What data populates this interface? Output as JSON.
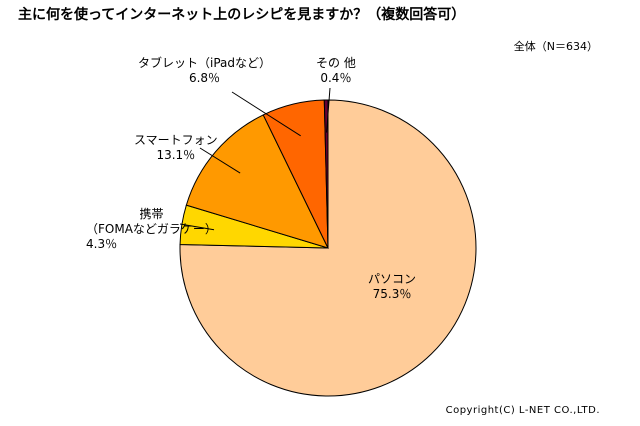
{
  "title": "主に何を使ってインターネット上のレシピを見ますか？（複数回答可）",
  "sample_note": "全体（N＝634）",
  "copyright": "Copyright(C) L-NET CO.,LTD.",
  "chart_data": {
    "type": "pie",
    "title": "主に何を使ってインターネット上のレシピを見ますか？（複数回答可）",
    "slices": [
      {
        "label": "パソコン",
        "percent_label": "75.3％",
        "value": 75.3,
        "color": "#FFCC99"
      },
      {
        "label": "携帯\n（FOMAなどガラケー）",
        "percent_label": "4.3％",
        "value": 4.3,
        "color": "#FFD700"
      },
      {
        "label": "スマートフォン",
        "percent_label": "13.1％",
        "value": 13.1,
        "color": "#FF9900"
      },
      {
        "label": "タブレット（iPadなど）",
        "percent_label": "6.8％",
        "value": 6.8,
        "color": "#FF6600"
      },
      {
        "label": "その 他",
        "percent_label": "0.4％",
        "value": 0.4,
        "color": "#660033"
      }
    ],
    "start_angle": "12 o'clock",
    "direction": "clockwise",
    "legend": "none (direct labels)"
  }
}
